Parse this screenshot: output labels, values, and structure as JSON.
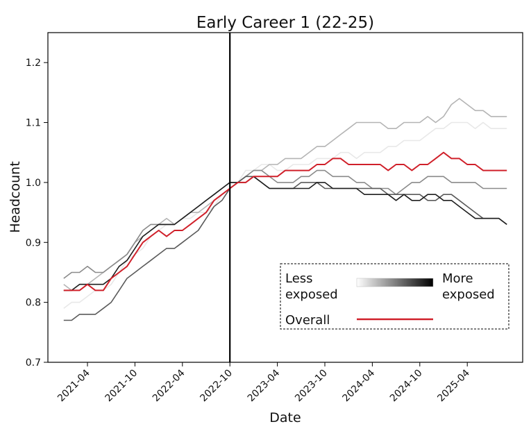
{
  "chart_data": {
    "type": "line",
    "title": "Early Career 1 (22-25)",
    "xlabel": "Date",
    "ylabel": "Headcount",
    "xlim": [
      "2020-11-01",
      "2025-11-01"
    ],
    "ylim": [
      0.7,
      1.25
    ],
    "yticks": [
      0.7,
      0.8,
      0.9,
      1.0,
      1.1,
      1.2
    ],
    "ytick_labels": [
      "0.7",
      "0.8",
      "0.9",
      "1.0",
      "1.1",
      "1.2"
    ],
    "xticks": [
      "2021-04",
      "2021-10",
      "2022-04",
      "2022-10",
      "2023-04",
      "2023-10",
      "2024-04",
      "2024-10",
      "2025-04"
    ],
    "grid": false,
    "reference_line": {
      "x": "2022-10",
      "color": "#000000"
    },
    "legend": {
      "placement": "lower-right",
      "less_label": "Less\nexposed",
      "more_label": "More\nexposed",
      "overall_label": "Overall",
      "gradient": [
        "#ffffff",
        "#000000"
      ]
    },
    "x_start": "2021-01",
    "series": [
      {
        "color": "#e8e8e8",
        "values": [
          0.79,
          0.8,
          0.8,
          0.81,
          0.82,
          0.82,
          0.83,
          0.85,
          0.87,
          0.88,
          0.89,
          0.91,
          0.92,
          0.93,
          0.93,
          0.94,
          0.94,
          0.95,
          0.95,
          0.96,
          0.98,
          0.99,
          1.0,
          1.02,
          1.02,
          1.03,
          1.03,
          1.02,
          1.02,
          1.03,
          1.03,
          1.03,
          1.04,
          1.04,
          1.04,
          1.05,
          1.05,
          1.04,
          1.05,
          1.05,
          1.05,
          1.06,
          1.06,
          1.07,
          1.07,
          1.07,
          1.08,
          1.09,
          1.09,
          1.1,
          1.1,
          1.1,
          1.09,
          1.1,
          1.09,
          1.09,
          1.09
        ]
      },
      {
        "color": "#b4b4b4",
        "values": [
          0.83,
          0.82,
          0.83,
          0.83,
          0.84,
          0.85,
          0.86,
          0.87,
          0.88,
          0.9,
          0.91,
          0.92,
          0.93,
          0.94,
          0.93,
          0.94,
          0.95,
          0.95,
          0.96,
          0.97,
          0.98,
          0.99,
          1.0,
          1.01,
          1.02,
          1.02,
          1.03,
          1.03,
          1.04,
          1.04,
          1.04,
          1.05,
          1.06,
          1.06,
          1.07,
          1.08,
          1.09,
          1.1,
          1.1,
          1.1,
          1.1,
          1.09,
          1.09,
          1.1,
          1.1,
          1.1,
          1.11,
          1.1,
          1.11,
          1.13,
          1.14,
          1.13,
          1.12,
          1.12,
          1.11,
          1.11,
          1.11
        ]
      },
      {
        "color": "#8a8a8a",
        "values": [
          0.84,
          0.85,
          0.85,
          0.86,
          0.85,
          0.85,
          0.86,
          0.87,
          0.88,
          0.9,
          0.92,
          0.93,
          0.93,
          0.93,
          0.93,
          0.94,
          0.95,
          0.96,
          0.97,
          0.98,
          0.99,
          1.0,
          1.0,
          1.01,
          1.02,
          1.02,
          1.01,
          1.0,
          1.0,
          1.0,
          1.01,
          1.01,
          1.02,
          1.02,
          1.01,
          1.01,
          1.01,
          1.0,
          1.0,
          0.99,
          0.99,
          0.99,
          0.98,
          0.99,
          1.0,
          1.0,
          1.01,
          1.01,
          1.01,
          1.0,
          1.0,
          1.0,
          1.0,
          0.99,
          0.99,
          0.99,
          0.99
        ]
      },
      {
        "color": "#5a5a5a",
        "values": [
          0.77,
          0.77,
          0.78,
          0.78,
          0.78,
          0.79,
          0.8,
          0.82,
          0.84,
          0.85,
          0.86,
          0.87,
          0.88,
          0.89,
          0.89,
          0.9,
          0.91,
          0.92,
          0.94,
          0.96,
          0.97,
          0.99,
          1.0,
          1.01,
          1.01,
          1.0,
          0.99,
          0.99,
          0.99,
          0.99,
          1.0,
          1.0,
          1.0,
          0.99,
          0.99,
          0.99,
          0.99,
          0.99,
          0.99,
          0.99,
          0.99,
          0.98,
          0.98,
          0.98,
          0.98,
          0.98,
          0.97,
          0.97,
          0.98,
          0.98,
          0.97,
          0.96,
          0.95,
          0.94,
          0.94,
          0.94,
          0.93
        ]
      },
      {
        "color": "#1e1e1e",
        "values": [
          0.82,
          0.82,
          0.83,
          0.83,
          0.83,
          0.83,
          0.84,
          0.86,
          0.87,
          0.89,
          0.91,
          0.92,
          0.93,
          0.93,
          0.93,
          0.94,
          0.95,
          0.96,
          0.97,
          0.98,
          0.99,
          1.0,
          1.0,
          1.0,
          1.01,
          1.0,
          0.99,
          0.99,
          0.99,
          0.99,
          0.99,
          0.99,
          1.0,
          1.0,
          0.99,
          0.99,
          0.99,
          0.99,
          0.98,
          0.98,
          0.98,
          0.98,
          0.97,
          0.98,
          0.97,
          0.97,
          0.98,
          0.98,
          0.97,
          0.97,
          0.96,
          0.95,
          0.94,
          0.94,
          0.94,
          0.94,
          0.93
        ]
      },
      {
        "color": "#d0202a",
        "overall": true,
        "values": [
          0.82,
          0.82,
          0.82,
          0.83,
          0.82,
          0.82,
          0.84,
          0.85,
          0.86,
          0.88,
          0.9,
          0.91,
          0.92,
          0.91,
          0.92,
          0.92,
          0.93,
          0.94,
          0.95,
          0.97,
          0.98,
          0.99,
          1.0,
          1.0,
          1.01,
          1.01,
          1.01,
          1.01,
          1.02,
          1.02,
          1.02,
          1.02,
          1.03,
          1.03,
          1.04,
          1.04,
          1.03,
          1.03,
          1.03,
          1.03,
          1.03,
          1.02,
          1.03,
          1.03,
          1.02,
          1.03,
          1.03,
          1.04,
          1.05,
          1.04,
          1.04,
          1.03,
          1.03,
          1.02,
          1.02,
          1.02,
          1.02
        ]
      }
    ]
  }
}
